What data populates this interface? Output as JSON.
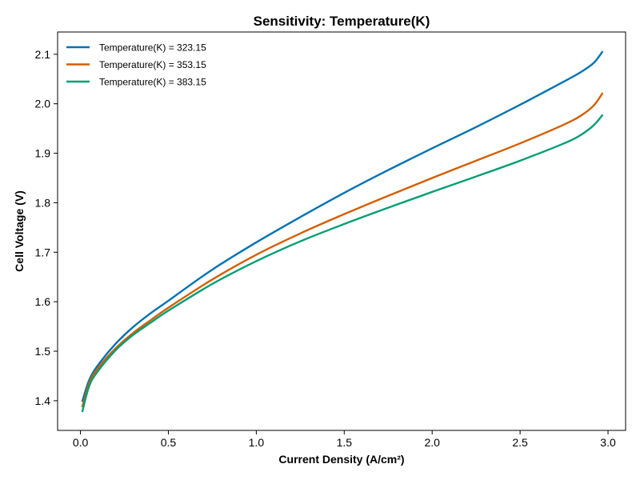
{
  "chart_data": {
    "type": "line",
    "title": "Sensitivity: Temperature(K)",
    "xlabel": "Current Density (A/cm²)",
    "ylabel": "Cell Voltage (V)",
    "xlim": [
      -0.13,
      3.1
    ],
    "ylim": [
      1.34,
      2.145
    ],
    "xticks": [
      0.0,
      0.5,
      1.0,
      1.5,
      2.0,
      2.5,
      3.0
    ],
    "xtick_labels": [
      "0.0",
      "0.5",
      "1.0",
      "1.5",
      "2.0",
      "2.5",
      "3.0"
    ],
    "yticks": [
      1.4,
      1.5,
      1.6,
      1.7,
      1.8,
      1.9,
      2.0,
      2.1
    ],
    "ytick_labels": [
      "1.4",
      "1.5",
      "1.6",
      "1.7",
      "1.8",
      "1.9",
      "2.0",
      "2.1"
    ],
    "grid": false,
    "legend_position": "top-left",
    "series": [
      {
        "name": "Temperature(K) = 323.15",
        "color": "#0072b2",
        "x": [
          0.01,
          0.05,
          0.1,
          0.2,
          0.3,
          0.4,
          0.5,
          0.75,
          1.0,
          1.25,
          1.5,
          1.75,
          2.0,
          2.25,
          2.5,
          2.75,
          2.85,
          2.92,
          2.97
        ],
        "y": [
          1.398,
          1.442,
          1.472,
          1.515,
          1.549,
          1.577,
          1.602,
          1.665,
          1.72,
          1.771,
          1.82,
          1.866,
          1.91,
          1.953,
          1.998,
          2.045,
          2.065,
          2.083,
          2.106
        ]
      },
      {
        "name": "Temperature(K) = 353.15",
        "color": "#d55e00",
        "x": [
          0.01,
          0.05,
          0.1,
          0.2,
          0.3,
          0.4,
          0.5,
          0.75,
          1.0,
          1.25,
          1.5,
          1.75,
          2.0,
          2.25,
          2.5,
          2.75,
          2.85,
          2.92,
          2.97
        ],
        "y": [
          1.387,
          1.436,
          1.466,
          1.506,
          1.537,
          1.563,
          1.588,
          1.645,
          1.695,
          1.738,
          1.777,
          1.814,
          1.85,
          1.885,
          1.92,
          1.958,
          1.977,
          1.997,
          2.022
        ]
      },
      {
        "name": "Temperature(K) = 383.15",
        "color": "#009e73",
        "x": [
          0.01,
          0.05,
          0.1,
          0.2,
          0.3,
          0.4,
          0.5,
          0.75,
          1.0,
          1.25,
          1.5,
          1.75,
          2.0,
          2.25,
          2.5,
          2.75,
          2.85,
          2.92,
          2.97
        ],
        "y": [
          1.377,
          1.43,
          1.46,
          1.502,
          1.533,
          1.558,
          1.582,
          1.636,
          1.682,
          1.722,
          1.757,
          1.79,
          1.822,
          1.853,
          1.885,
          1.92,
          1.938,
          1.957,
          1.978
        ]
      }
    ]
  }
}
